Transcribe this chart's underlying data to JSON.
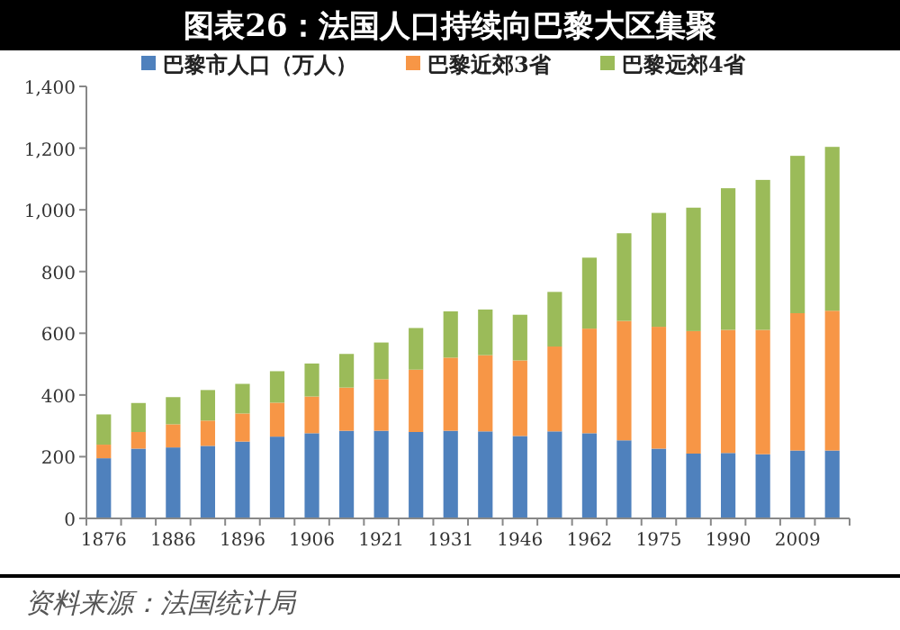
{
  "chart_data": {
    "type": "bar",
    "stacked": true,
    "title": "图表26：法国人口持续向巴黎大区集聚",
    "categories": [
      "1876",
      null,
      "1886",
      null,
      "1896",
      null,
      "1906",
      null,
      "1921",
      null,
      "1931",
      null,
      "1946",
      null,
      "1962",
      null,
      "1975",
      null,
      "1990",
      null,
      "2009",
      null
    ],
    "series": [
      {
        "name": "巴黎市人口（万人）",
        "color": "#4f81bd",
        "values": [
          195,
          226,
          230,
          235,
          249,
          265,
          276,
          284,
          284,
          280,
          284,
          282,
          267,
          282,
          276,
          253,
          226,
          210,
          212,
          208,
          220,
          220
        ]
      },
      {
        "name": "巴黎近郊3省",
        "color": "#f79646",
        "values": [
          44,
          54,
          75,
          82,
          91,
          110,
          119,
          140,
          167,
          202,
          237,
          247,
          245,
          275,
          339,
          387,
          395,
          397,
          399,
          403,
          445,
          453
        ]
      },
      {
        "name": "巴黎远郊4省",
        "color": "#9bbb59",
        "values": [
          98,
          94,
          88,
          99,
          96,
          102,
          107,
          109,
          119,
          135,
          150,
          148,
          148,
          177,
          230,
          284,
          369,
          400,
          459,
          486,
          510,
          531
        ]
      }
    ],
    "ylim": [
      0,
      1400
    ],
    "yticks": [
      0,
      {
        "value": 200,
        "label": "200"
      },
      {
        "value": 400,
        "label": "400"
      },
      {
        "value": 600,
        "label": "600"
      },
      {
        "value": 800,
        "label": "800"
      },
      {
        "value": 1000,
        "label": "1,000"
      },
      {
        "value": 1200,
        "label": "1,200"
      },
      {
        "value": 1400,
        "label": "1,400"
      }
    ],
    "legend": "top",
    "grid": false,
    "annotations": [
      "资料来源：法国统计局"
    ]
  }
}
